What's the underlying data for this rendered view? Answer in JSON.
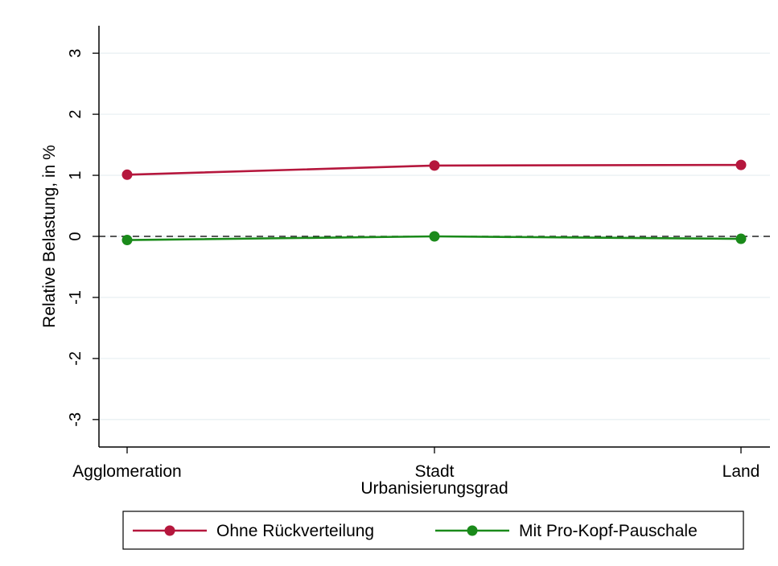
{
  "chart_data": {
    "type": "line",
    "categories": [
      "Agglomeration",
      "Stadt",
      "Land"
    ],
    "xlabel": "Urbanisierungsgrad",
    "ylabel": "Relative Belastung, in %",
    "ylim": [
      -3.45,
      3.45
    ],
    "yticks": [
      3,
      2,
      1,
      0,
      -1,
      -2,
      -3
    ],
    "ytick_labels": [
      "3",
      "2",
      "1",
      "0",
      "-1",
      "-2",
      "-3"
    ],
    "reference_line": 0,
    "grid": true,
    "legend_position": "bottom",
    "series": [
      {
        "name": "Ohne Rückverteilung",
        "color": "#b5173d",
        "values": [
          1.01,
          1.16,
          1.17
        ]
      },
      {
        "name": "Mit Pro-Kopf-Pauschale",
        "color": "#1a8a1a",
        "values": [
          -0.06,
          0.0,
          -0.04
        ]
      }
    ]
  }
}
